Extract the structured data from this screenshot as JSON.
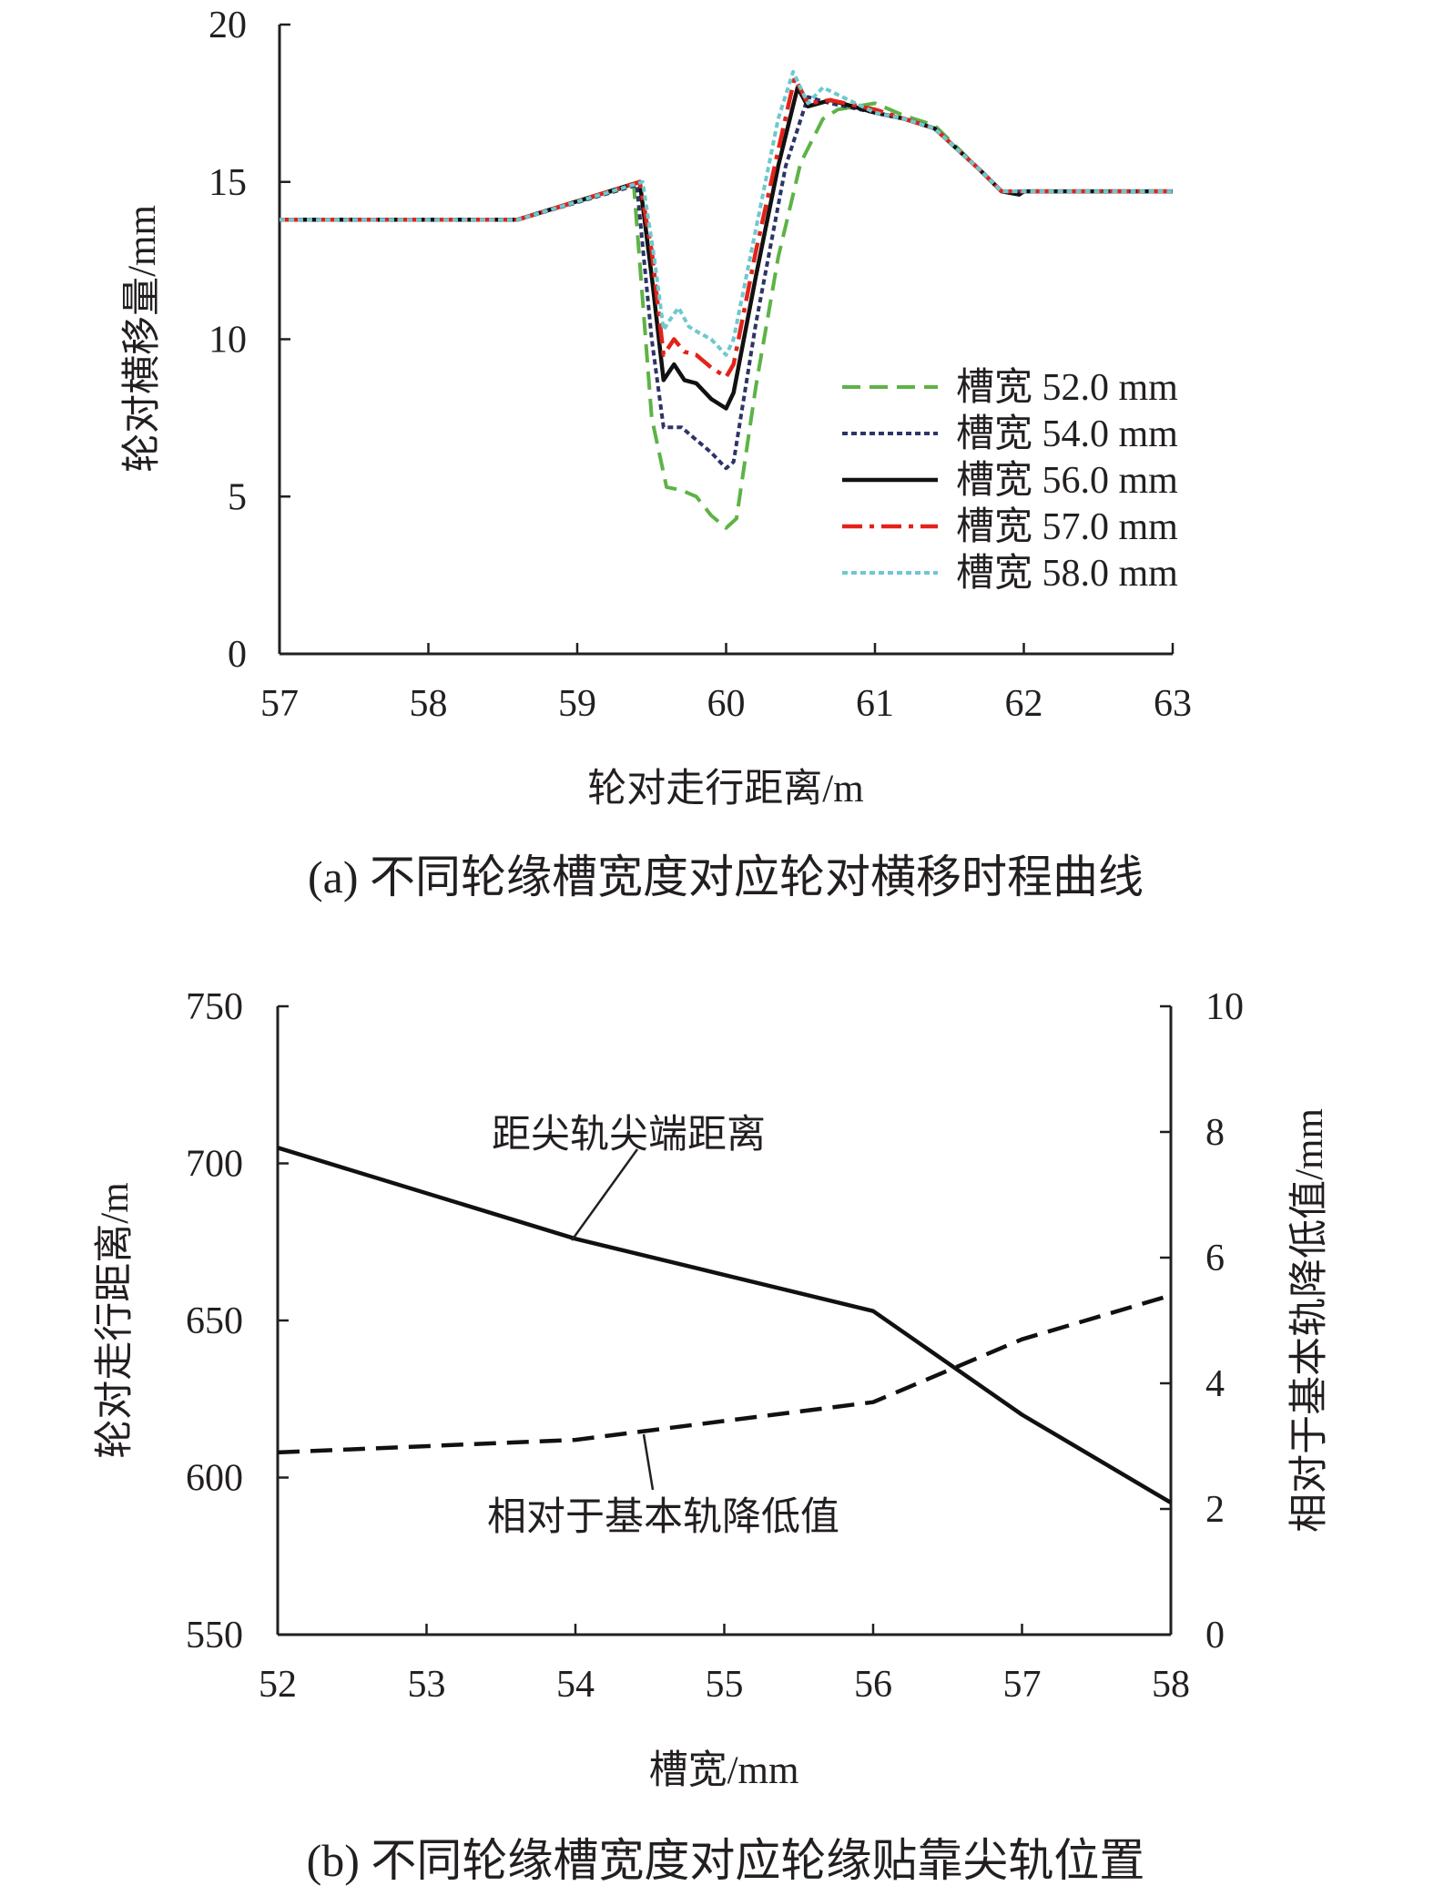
{
  "chart_data": [
    {
      "type": "line",
      "caption": "(a) 不同轮缘槽宽度对应轮对横移时程曲线",
      "xlabel": "轮对走行距离/m",
      "ylabel": "轮对横移量/mm",
      "xlim": [
        57,
        63
      ],
      "ylim": [
        0,
        20
      ],
      "xticks": [
        57,
        58,
        59,
        60,
        61,
        62,
        63
      ],
      "yticks": [
        0,
        5,
        10,
        15,
        20
      ],
      "legend_position": "right-middle",
      "grid": false,
      "series": [
        {
          "name": "槽宽 52.0 mm",
          "color": "#5db346",
          "style": "dashed",
          "x": [
            57,
            58.6,
            59.38,
            59.5,
            59.6,
            59.7,
            59.8,
            59.9,
            60.0,
            60.07,
            60.2,
            60.35,
            60.5,
            60.65,
            60.75,
            61.0,
            61.2,
            61.4,
            61.7,
            61.85,
            62.0,
            62.5,
            63
          ],
          "y": [
            13.8,
            13.8,
            14.9,
            7.5,
            5.3,
            5.2,
            5.0,
            4.4,
            4.0,
            4.3,
            8.5,
            12.6,
            15.6,
            17.0,
            17.3,
            17.5,
            17.1,
            16.8,
            15.4,
            14.7,
            14.7,
            14.7,
            14.7
          ]
        },
        {
          "name": "槽宽 54.0 mm",
          "color": "#2e3468",
          "style": "dotted",
          "x": [
            57,
            58.6,
            59.4,
            59.5,
            59.58,
            59.7,
            59.8,
            59.9,
            60.0,
            60.05,
            60.2,
            60.4,
            60.55,
            60.7,
            61.0,
            61.2,
            61.4,
            61.7,
            61.85,
            62.0,
            62.5,
            63
          ],
          "y": [
            13.8,
            13.8,
            14.9,
            10.0,
            7.2,
            7.2,
            6.8,
            6.4,
            5.9,
            6.1,
            10.5,
            15.5,
            17.7,
            17.5,
            17.2,
            17.0,
            16.7,
            15.4,
            14.7,
            14.7,
            14.7,
            14.7
          ]
        },
        {
          "name": "槽宽 56.0 mm",
          "color": "#111111",
          "style": "solid",
          "x": [
            57,
            58.6,
            59.42,
            59.5,
            59.58,
            59.65,
            59.72,
            59.8,
            59.9,
            60.0,
            60.05,
            60.2,
            60.35,
            60.48,
            60.55,
            60.7,
            61.0,
            61.2,
            61.4,
            61.7,
            61.85,
            61.97,
            62.0,
            62.5,
            63
          ],
          "y": [
            13.8,
            13.8,
            15.0,
            12.0,
            8.7,
            9.2,
            8.7,
            8.6,
            8.1,
            7.8,
            8.3,
            12.0,
            15.5,
            18.0,
            17.4,
            17.6,
            17.2,
            17.0,
            16.7,
            15.4,
            14.7,
            14.6,
            14.7,
            14.7,
            14.7
          ]
        },
        {
          "name": "槽宽 57.0 mm",
          "color": "#e2231a",
          "style": "dashdot",
          "x": [
            57,
            58.6,
            59.42,
            59.5,
            59.58,
            59.65,
            59.72,
            59.8,
            59.9,
            60.0,
            60.05,
            60.2,
            60.35,
            60.46,
            60.55,
            60.7,
            61.0,
            61.2,
            61.4,
            61.7,
            61.85,
            62.0,
            62.5,
            63
          ],
          "y": [
            13.8,
            13.8,
            15.0,
            12.8,
            9.5,
            10.0,
            9.6,
            9.5,
            9.1,
            8.8,
            9.2,
            12.8,
            16.0,
            18.3,
            17.5,
            17.6,
            17.3,
            17.0,
            16.7,
            15.4,
            14.7,
            14.7,
            14.7,
            14.7
          ]
        },
        {
          "name": "槽宽 58.0 mm",
          "color": "#6ec8cf",
          "style": "dotted",
          "x": [
            57,
            58.6,
            59.44,
            59.52,
            59.58,
            59.62,
            59.68,
            59.75,
            59.82,
            59.9,
            60.0,
            60.05,
            60.2,
            60.35,
            60.45,
            60.55,
            60.65,
            61.0,
            61.2,
            61.4,
            61.7,
            61.85,
            62.0,
            62.5,
            63
          ],
          "y": [
            13.8,
            13.8,
            15.0,
            12.5,
            10.3,
            10.6,
            11.0,
            10.4,
            10.2,
            10.0,
            9.5,
            10.0,
            13.5,
            17.0,
            18.5,
            17.5,
            18.0,
            17.2,
            17.0,
            16.7,
            15.4,
            14.7,
            14.7,
            14.7,
            14.7
          ]
        }
      ]
    },
    {
      "type": "line",
      "caption": "(b) 不同轮缘槽宽度对应轮缘贴靠尖轨位置",
      "xlabel": "槽宽/mm",
      "ylabel": "轮对走行距离/m",
      "ylabel_right": "相对于基本轨降低值/mm",
      "xlim": [
        52,
        58
      ],
      "ylim": [
        550,
        750
      ],
      "ylim_right": [
        0,
        10
      ],
      "xticks": [
        52,
        53,
        54,
        55,
        56,
        57,
        58
      ],
      "yticks": [
        550,
        600,
        650,
        700,
        750
      ],
      "yticks_right": [
        0,
        2,
        4,
        6,
        8,
        10
      ],
      "grid": false,
      "series": [
        {
          "name": "距尖轨尖端距离",
          "axis": "left",
          "color": "#111111",
          "style": "solid",
          "x": [
            52,
            54,
            56,
            57,
            58
          ],
          "y": [
            705,
            676,
            653,
            620,
            592
          ]
        },
        {
          "name": "相对于基本轨降低值",
          "axis": "right",
          "color": "#111111",
          "style": "dashed",
          "x": [
            52,
            54,
            56,
            57,
            58
          ],
          "y": [
            2.9,
            3.1,
            3.7,
            4.7,
            5.4
          ]
        }
      ]
    }
  ]
}
